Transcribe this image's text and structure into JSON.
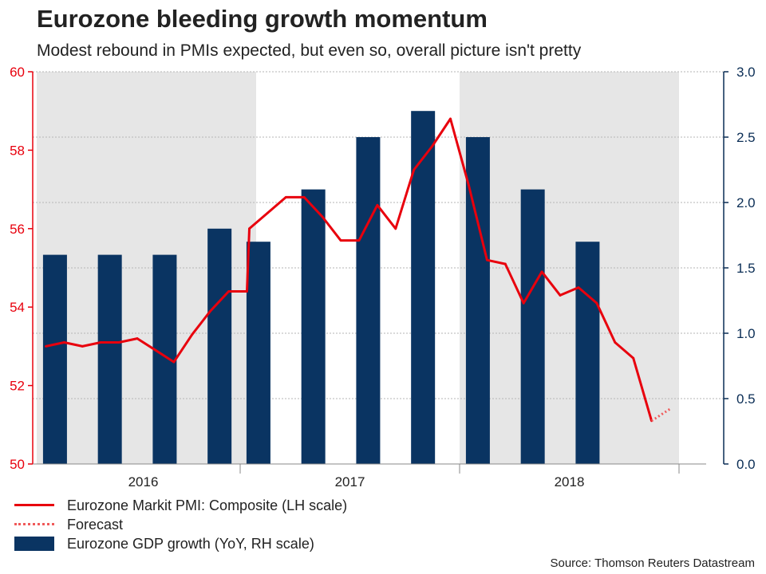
{
  "chart_data": {
    "type": "bar+line",
    "title": "Eurozone bleeding growth momentum",
    "subtitle": "Modest rebound in PMIs expected, but even so, overall picture isn't pretty",
    "x_groups": [
      "2016",
      "2017",
      "2018"
    ],
    "left_axis": {
      "label": "Eurozone Markit PMI: Composite (LH scale)",
      "ylim": [
        50,
        60
      ],
      "ticks": [
        "50",
        "52",
        "54",
        "56",
        "58",
        "60"
      ],
      "color": "#e8000d"
    },
    "right_axis": {
      "label": "Eurozone GDP growth (YoY, RH scale)",
      "ylim": [
        0,
        3.0
      ],
      "ticks": [
        "0.0",
        "0.5",
        "1.0",
        "1.5",
        "2.0",
        "2.5",
        "3.0"
      ],
      "color": "#0a2d55"
    },
    "gdp_series": {
      "name": "Eurozone GDP growth (YoY, RH scale)",
      "quarters": [
        "2016Q1",
        "2016Q2",
        "2016Q3",
        "2016Q4",
        "2017Q1",
        "2017Q2",
        "2017Q3",
        "2017Q4",
        "2018Q1",
        "2018Q2",
        "2018Q3"
      ],
      "values": [
        1.6,
        1.6,
        1.6,
        1.8,
        1.7,
        2.1,
        2.5,
        2.7,
        2.5,
        2.1,
        1.7
      ],
      "color": "#0a3462"
    },
    "pmi_series": {
      "name": "Eurozone Markit PMI: Composite (LH scale)",
      "start": "2016-01",
      "values": [
        53.0,
        53.1,
        53.0,
        53.1,
        53.1,
        53.2,
        52.9,
        52.6,
        53.3,
        53.9,
        54.4,
        54.4,
        56.0,
        56.4,
        56.8,
        56.8,
        56.3,
        55.7,
        55.7,
        56.6,
        56.0,
        57.5,
        58.1,
        58.8,
        57.1,
        55.2,
        55.1,
        54.1,
        54.9,
        54.3,
        54.5,
        54.1,
        53.1,
        52.7,
        51.1
      ],
      "color": "#e8000d"
    },
    "forecast_series": {
      "name": "Forecast",
      "start": "2018-11",
      "values": [
        51.1,
        51.4
      ],
      "color": "#f05a5a"
    },
    "shaded_years": [
      "2016",
      "2018"
    ],
    "grid": true,
    "legend": "bottom-left"
  },
  "source": "Source: Thomson Reuters Datastream"
}
